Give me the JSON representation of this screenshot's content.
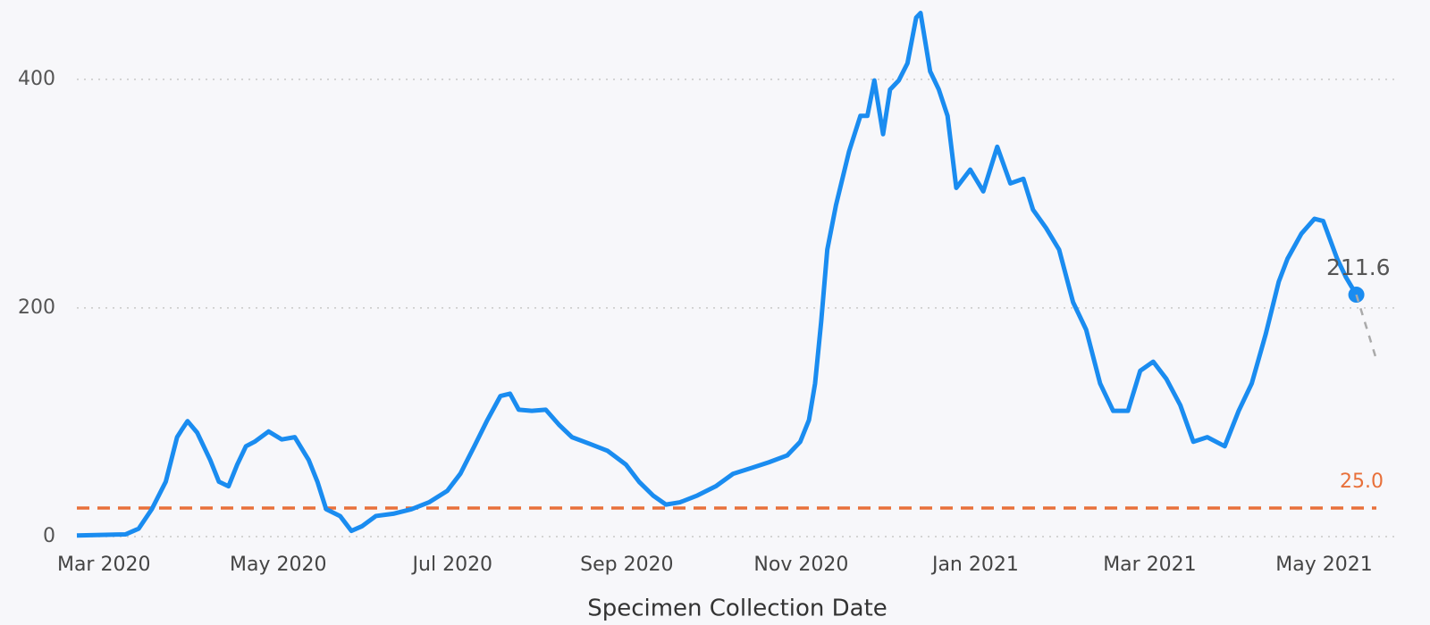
{
  "chart_data": {
    "type": "line",
    "x_label": "Specimen Collection Date",
    "xlim": [
      -0.31,
      14.6
    ],
    "xticks": [
      {
        "value": 0,
        "label": "Mar 2020"
      },
      {
        "value": 2,
        "label": "May 2020"
      },
      {
        "value": 4,
        "label": "Jul 2020"
      },
      {
        "value": 6,
        "label": "Sep 2020"
      },
      {
        "value": 8,
        "label": "Nov 2020"
      },
      {
        "value": 10,
        "label": "Jan 2021"
      },
      {
        "value": 12,
        "label": "Mar 2021"
      },
      {
        "value": 14,
        "label": "May 2021"
      }
    ],
    "ylim": [
      0,
      460
    ],
    "yticks": [
      0,
      200,
      400
    ],
    "grid": true,
    "reference_lines": [
      {
        "value": 25,
        "label": "25.0",
        "color": "#e8703a"
      }
    ],
    "series": [
      {
        "color": "#1a8cf0",
        "last_label": "211.6",
        "x": [
          -0.31,
          0.25,
          0.4,
          0.55,
          0.71,
          0.84,
          0.89,
          0.96,
          1.07,
          1.22,
          1.32,
          1.43,
          1.53,
          1.63,
          1.73,
          1.89,
          2.04,
          2.19,
          2.35,
          2.45,
          2.55,
          2.71,
          2.84,
          2.96,
          3.12,
          3.32,
          3.53,
          3.73,
          3.94,
          4.09,
          4.25,
          4.4,
          4.55,
          4.66,
          4.76,
          4.91,
          5.07,
          5.22,
          5.37,
          5.58,
          5.78,
          5.99,
          6.14,
          6.3,
          6.45,
          6.61,
          6.81,
          7.02,
          7.22,
          7.43,
          7.63,
          7.84,
          7.99,
          8.09,
          8.16,
          8.23,
          8.3,
          8.4,
          8.55,
          8.68,
          8.76,
          8.84,
          8.94,
          9.02,
          9.12,
          9.22,
          9.32,
          9.37,
          9.48,
          9.58,
          9.68,
          9.78,
          9.94,
          10.09,
          10.25,
          10.4,
          10.55,
          10.66,
          10.81,
          10.96,
          11.12,
          11.27,
          11.43,
          11.58,
          11.75,
          11.89,
          12.04,
          12.19,
          12.35,
          12.5,
          12.66,
          12.86,
          13.02,
          13.17,
          13.33,
          13.48,
          13.58,
          13.74,
          13.89,
          13.99,
          14.15,
          14.25,
          14.37
        ],
        "values": [
          1,
          2,
          7,
          24,
          48,
          87,
          93,
          101,
          91,
          67,
          48,
          44,
          63,
          79,
          83,
          92,
          85,
          87,
          67,
          48,
          24,
          18,
          5,
          9,
          18,
          20,
          24,
          30,
          40,
          55,
          79,
          102,
          123,
          125,
          111,
          110,
          111,
          98,
          87,
          81,
          75,
          63,
          48,
          36,
          28,
          30,
          36,
          44,
          55,
          60,
          65,
          71,
          83,
          102,
          134,
          188,
          251,
          290,
          337,
          368,
          368,
          399,
          352,
          391,
          399,
          414,
          454,
          458,
          407,
          391,
          368,
          305,
          321,
          302,
          341,
          309,
          313,
          286,
          270,
          251,
          205,
          181,
          134,
          110,
          110,
          145,
          153,
          138,
          115,
          83,
          87,
          79,
          110,
          134,
          177,
          223,
          243,
          265,
          278,
          276,
          243,
          227,
          211.6
        ]
      },
      {
        "color": "#aaaaaa",
        "dashed": true,
        "x": [
          14.37,
          14.6
        ],
        "values": [
          211.6,
          155
        ]
      }
    ]
  }
}
